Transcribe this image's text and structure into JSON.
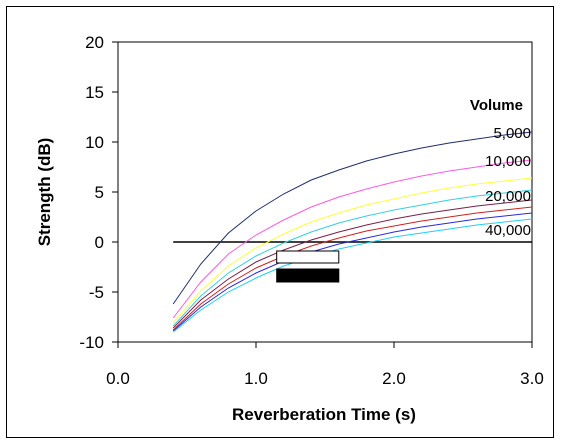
{
  "chart_data": {
    "type": "line",
    "title": "",
    "xlabel": "Reverberation Time (s)",
    "ylabel": "Strength (dB)",
    "xlim": [
      0.0,
      3.0
    ],
    "ylim": [
      -10,
      20
    ],
    "xticks": [
      "0.0",
      "1.0",
      "2.0",
      "3.0"
    ],
    "yticks": [
      "20",
      "15",
      "10",
      "5",
      "0",
      "-5",
      "-10"
    ],
    "xtick_values": [
      0.0,
      1.0,
      2.0,
      3.0
    ],
    "ytick_values": [
      20,
      15,
      10,
      5,
      0,
      -5,
      -10
    ],
    "grid": false,
    "legend_title": "Volume",
    "x": [
      0.4,
      0.6,
      0.8,
      1.0,
      1.2,
      1.4,
      1.6,
      1.8,
      2.0,
      2.2,
      2.4,
      2.6,
      2.8,
      3.0
    ],
    "series": [
      {
        "color": "#1f2f6b",
        "values": [
          -6.2,
          -2.2,
          0.9,
          3.1,
          4.8,
          6.2,
          7.2,
          8.1,
          8.8,
          9.4,
          9.9,
          10.3,
          10.7,
          11.0
        ]
      },
      {
        "color": "#ff5ce0",
        "values": [
          -7.6,
          -4.0,
          -1.2,
          0.7,
          2.2,
          3.5,
          4.5,
          5.3,
          6.0,
          6.6,
          7.1,
          7.5,
          7.9,
          8.2
        ]
      },
      {
        "color": "#ffff3c",
        "values": [
          -8.1,
          -4.9,
          -2.4,
          -0.6,
          0.8,
          2.0,
          2.9,
          3.7,
          4.3,
          4.9,
          5.4,
          5.8,
          6.1,
          6.4
        ]
      },
      {
        "color": "#35d0e0",
        "values": [
          -8.4,
          -5.4,
          -3.1,
          -1.4,
          -0.1,
          1.0,
          1.9,
          2.6,
          3.2,
          3.7,
          4.2,
          4.6,
          4.9,
          5.2
        ]
      },
      {
        "color": "#7a1f4a",
        "values": [
          -8.6,
          -5.8,
          -3.7,
          -2.0,
          -0.8,
          0.2,
          1.0,
          1.7,
          2.3,
          2.8,
          3.2,
          3.6,
          3.9,
          4.2
        ]
      },
      {
        "color": "#d02020",
        "values": [
          -8.8,
          -6.2,
          -4.2,
          -2.6,
          -1.4,
          -0.4,
          0.4,
          1.1,
          1.6,
          2.1,
          2.5,
          2.9,
          3.2,
          3.5
        ]
      },
      {
        "color": "#2a2ad8",
        "values": [
          -8.9,
          -6.5,
          -4.6,
          -3.1,
          -1.9,
          -1.0,
          -0.2,
          0.4,
          1.0,
          1.5,
          1.9,
          2.3,
          2.6,
          2.9
        ]
      },
      {
        "color": "#20d0f0",
        "values": [
          -9.0,
          -6.8,
          -5.0,
          -3.6,
          -2.4,
          -1.5,
          -0.7,
          -0.1,
          0.5,
          0.9,
          1.3,
          1.7,
          2.0,
          2.3
        ]
      }
    ],
    "series_labels": [
      {
        "text": "5,000",
        "y": 11.0
      },
      {
        "text": "10,000",
        "y": 8.2
      },
      {
        "text": "20,000",
        "y": 4.7
      },
      {
        "text": "40,000",
        "y": 1.3
      }
    ],
    "reference_line": {
      "y": 0,
      "x": [
        0.4,
        3.0
      ],
      "color": "#000000"
    },
    "ranges": [
      {
        "style": "outline",
        "x": [
          1.15,
          1.6
        ],
        "y": [
          -2.1,
          -0.9
        ]
      },
      {
        "style": "filled",
        "x": [
          1.15,
          1.6
        ],
        "y": [
          -4.0,
          -2.7
        ]
      }
    ],
    "legend_placement": "right"
  }
}
